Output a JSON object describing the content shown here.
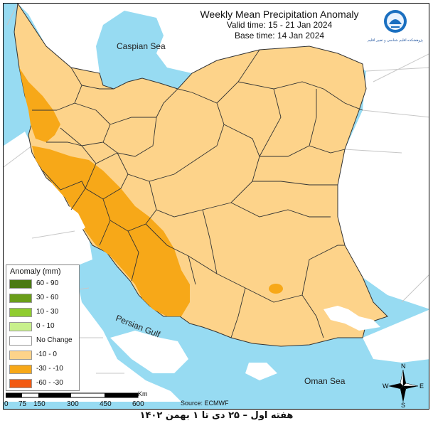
{
  "title": {
    "main": "Weekly Mean Precipitation Anomaly",
    "valid": "Valid time:  15 - 21 Jan 2024",
    "base": "Base time: 14 Jan 2024"
  },
  "logo": {
    "text": "پژوهشکده اقلیم شناسی و تغییر اقلیم"
  },
  "seas": {
    "caspian": "Caspian Sea",
    "persian_gulf": "Persian Gulf",
    "oman": "Oman Sea"
  },
  "legend": {
    "title": "Anomaly (mm)",
    "items": [
      {
        "label": "60 - 90",
        "color": "#4b7a12"
      },
      {
        "label": "30 - 60",
        "color": "#6a9e1a"
      },
      {
        "label": "10 - 30",
        "color": "#8fcc2e"
      },
      {
        "label": "0 - 10",
        "color": "#c8f08c"
      },
      {
        "label": "No Change",
        "color": "#ffffff"
      },
      {
        "label": "-10 - 0",
        "color": "#fdd38a"
      },
      {
        "label": "-30 - -10",
        "color": "#f7a818"
      },
      {
        "label": "-60 - -30",
        "color": "#f25a12"
      }
    ]
  },
  "source": "Source: ECMWF",
  "scale": {
    "unit": "Km",
    "ticks": [
      "0",
      "75",
      "150",
      "300",
      "450",
      "600"
    ]
  },
  "compass": {
    "n": "N",
    "s": "S",
    "e": "E",
    "w": "W"
  },
  "caption": "هفته اول – ۲۵ دی تا ۱ بهمن ۱۴۰۲",
  "colors": {
    "sea": "#97dbf2",
    "neighbor_land": "#ffffff",
    "anomaly_minus10_0": "#fdd38a",
    "anomaly_minus30_minus10": "#f7a818",
    "no_change": "#ffffff"
  }
}
